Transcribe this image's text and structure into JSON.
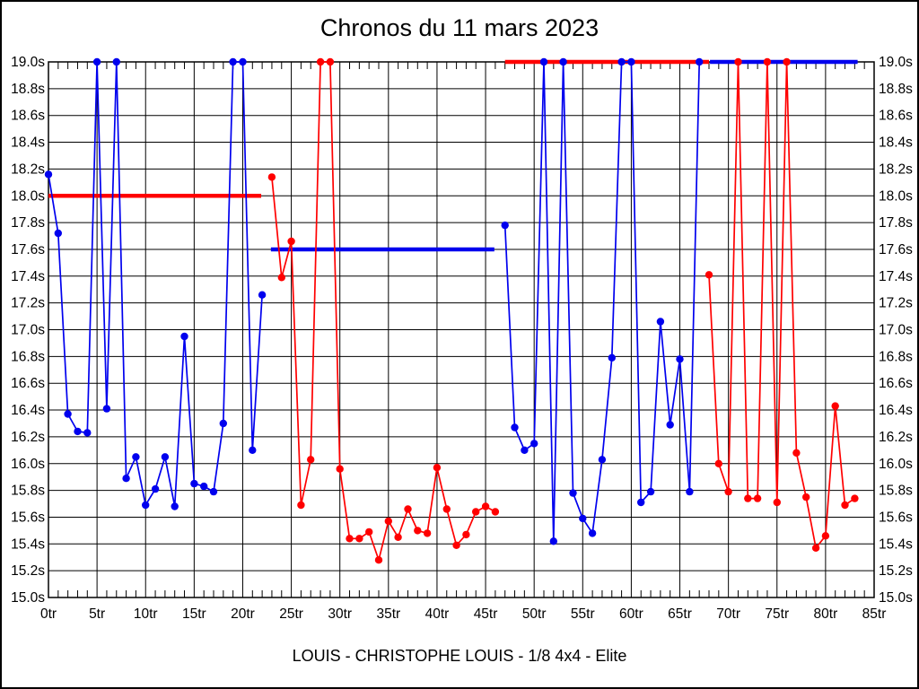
{
  "chart_data": {
    "type": "line",
    "title": "Chronos du 11 mars 2023",
    "footer": "LOUIS - CHRISTOPHE LOUIS - 1/8 4x4 - Elite",
    "xlim": [
      0,
      85
    ],
    "ylim": [
      15.0,
      19.0
    ],
    "y_step": 0.2,
    "x_tick_step": 5,
    "x_minor_step": 1,
    "x_unit": "tr",
    "y_unit": "s",
    "grid": true,
    "legend": "none",
    "x_ticks": [
      "0tr",
      "5tr",
      "10tr",
      "15tr",
      "20tr",
      "25tr",
      "30tr",
      "35tr",
      "40tr",
      "45tr",
      "50tr",
      "55tr",
      "60tr",
      "65tr",
      "70tr",
      "75tr",
      "80tr",
      "85tr"
    ],
    "y_ticks": [
      "15.0s",
      "15.2s",
      "15.4s",
      "15.6s",
      "15.8s",
      "16.0s",
      "16.2s",
      "16.4s",
      "16.6s",
      "16.8s",
      "17.0s",
      "17.2s",
      "17.4s",
      "17.6s",
      "17.8s",
      "18.0s",
      "18.2s",
      "18.4s",
      "18.6s",
      "18.8s",
      "19.0s"
    ],
    "colors": {
      "blue_series": "#0000ee",
      "red_series": "#ff0000",
      "grid": "#000000",
      "text": "#000000",
      "background": "#ffffff"
    },
    "series": [
      {
        "name": "blue-run-1",
        "color": "#0000ee",
        "points": [
          [
            0,
            18.16
          ],
          [
            1,
            17.72
          ],
          [
            2,
            16.37
          ],
          [
            3,
            16.24
          ],
          [
            4,
            16.23
          ],
          [
            5,
            19.0
          ],
          [
            6,
            16.41
          ],
          [
            7,
            19.0
          ],
          [
            8,
            15.89
          ],
          [
            9,
            16.05
          ],
          [
            10,
            15.69
          ],
          [
            11,
            15.81
          ],
          [
            12,
            16.05
          ],
          [
            13,
            15.68
          ],
          [
            14,
            16.95
          ],
          [
            15,
            15.85
          ],
          [
            16,
            15.83
          ],
          [
            17,
            15.79
          ],
          [
            18,
            16.3
          ],
          [
            19,
            19.0
          ],
          [
            20,
            19.0
          ],
          [
            21,
            16.1
          ],
          [
            22,
            17.26
          ]
        ]
      },
      {
        "name": "red-run-1",
        "color": "#ff0000",
        "points": [
          [
            23,
            18.14
          ],
          [
            24,
            17.39
          ],
          [
            25,
            17.66
          ],
          [
            26,
            15.69
          ],
          [
            27,
            16.03
          ],
          [
            28,
            19.0
          ],
          [
            29,
            19.0
          ],
          [
            30,
            15.96
          ],
          [
            31,
            15.44
          ],
          [
            32,
            15.44
          ],
          [
            33,
            15.49
          ],
          [
            34,
            15.28
          ],
          [
            35,
            15.57
          ],
          [
            36,
            15.45
          ],
          [
            37,
            15.66
          ],
          [
            38,
            15.5
          ],
          [
            39,
            15.48
          ],
          [
            40,
            15.97
          ],
          [
            41,
            15.66
          ],
          [
            42,
            15.39
          ],
          [
            43,
            15.47
          ],
          [
            44,
            15.64
          ],
          [
            45,
            15.68
          ],
          [
            46,
            15.64
          ]
        ]
      },
      {
        "name": "blue-run-2",
        "color": "#0000ee",
        "points": [
          [
            47,
            17.78
          ],
          [
            48,
            16.27
          ],
          [
            49,
            16.1
          ],
          [
            50,
            16.15
          ],
          [
            51,
            19.0
          ],
          [
            52,
            15.42
          ],
          [
            53,
            19.0
          ],
          [
            54,
            15.78
          ],
          [
            55,
            15.59
          ],
          [
            56,
            15.48
          ],
          [
            57,
            16.03
          ],
          [
            58,
            16.79
          ],
          [
            59,
            19.0
          ],
          [
            60,
            19.0
          ],
          [
            61,
            15.71
          ],
          [
            62,
            15.79
          ],
          [
            63,
            17.06
          ],
          [
            64,
            16.29
          ],
          [
            65,
            16.78
          ],
          [
            66,
            15.79
          ],
          [
            67,
            19.0
          ]
        ]
      },
      {
        "name": "red-run-2",
        "color": "#ff0000",
        "points": [
          [
            68,
            17.41
          ],
          [
            69,
            16.0
          ],
          [
            70,
            15.79
          ],
          [
            71,
            19.0
          ],
          [
            72,
            15.74
          ],
          [
            73,
            15.74
          ],
          [
            74,
            19.0
          ],
          [
            75,
            15.71
          ],
          [
            76,
            19.0
          ],
          [
            77,
            16.08
          ],
          [
            78,
            15.75
          ],
          [
            79,
            15.37
          ],
          [
            80,
            15.46
          ],
          [
            81,
            16.43
          ],
          [
            82,
            15.69
          ],
          [
            83,
            15.74
          ]
        ]
      }
    ],
    "reference_lines": [
      {
        "name": "avg-line-run-1",
        "color": "#ff0000",
        "value": 18.0,
        "from_lap": 0.0,
        "to_lap": 21.9
      },
      {
        "name": "avg-line-run-2",
        "color": "#0000ee",
        "value": 17.6,
        "from_lap": 22.9,
        "to_lap": 45.9
      },
      {
        "name": "avg-line-run-3",
        "color": "#ff0000",
        "value": 19.0,
        "from_lap": 47.0,
        "to_lap": 68.0
      },
      {
        "name": "avg-line-run-4",
        "color": "#0000ee",
        "value": 19.0,
        "from_lap": 68.1,
        "to_lap": 83.3
      }
    ]
  }
}
